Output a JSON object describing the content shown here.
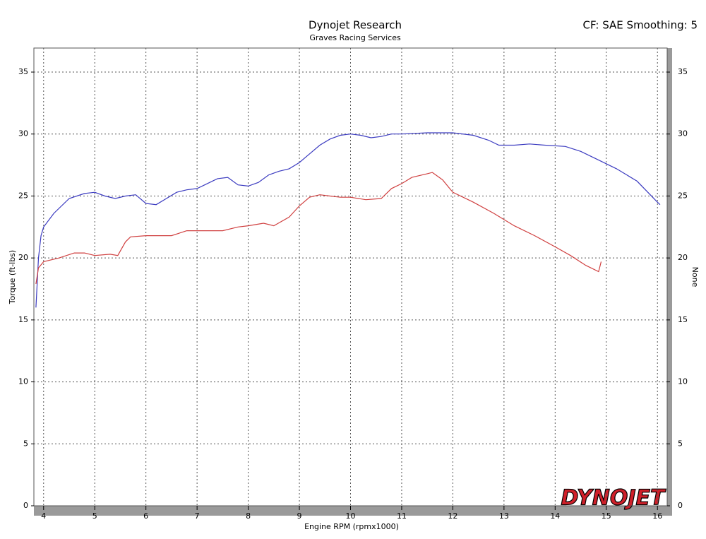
{
  "chart_data": {
    "type": "line",
    "title": "Dynojet Research",
    "subtitle": "Graves Racing Services",
    "annotation": "CF: SAE Smoothing: 5",
    "logo": "DYNOJET",
    "x_label": "Engine RPM (rpmx1000)",
    "y_label": "Torque (ft-lbs)",
    "y2_label": "None",
    "xlim": [
      3.81,
      16.19
    ],
    "xticks": [
      4,
      5,
      6,
      7,
      8,
      9,
      10,
      11,
      12,
      13,
      14,
      15,
      16
    ],
    "ylim": [
      0,
      36.94
    ],
    "yticks": [
      0,
      5,
      10,
      15,
      20,
      25,
      30,
      35
    ],
    "y2lim": [
      0,
      36.94
    ],
    "y2ticks": [
      0,
      5,
      10,
      15,
      20,
      25,
      30,
      35
    ],
    "grid": true,
    "series": [
      {
        "color": "#3b3bc0",
        "x": [
          3.85,
          3.9,
          3.95,
          4.0,
          4.2,
          4.5,
          4.8,
          5.0,
          5.2,
          5.4,
          5.6,
          5.8,
          6.0,
          6.2,
          6.4,
          6.6,
          6.8,
          7.0,
          7.2,
          7.4,
          7.6,
          7.8,
          8.0,
          8.2,
          8.4,
          8.6,
          8.8,
          9.0,
          9.2,
          9.4,
          9.6,
          9.8,
          10.0,
          10.2,
          10.4,
          10.6,
          10.8,
          11.0,
          11.5,
          12.0,
          12.4,
          12.7,
          12.9,
          13.2,
          13.5,
          13.8,
          14.2,
          14.5,
          14.8,
          15.2,
          15.6,
          16.0,
          16.05
        ],
        "values": [
          16.0,
          20.0,
          21.8,
          22.5,
          23.6,
          24.8,
          25.2,
          25.3,
          25.0,
          24.8,
          25.0,
          25.1,
          24.4,
          24.3,
          24.8,
          25.3,
          25.5,
          25.6,
          26.0,
          26.4,
          26.5,
          25.9,
          25.8,
          26.1,
          26.7,
          27.0,
          27.2,
          27.7,
          28.4,
          29.1,
          29.6,
          29.9,
          30.0,
          29.9,
          29.7,
          29.8,
          30.0,
          30.0,
          30.1,
          30.1,
          29.9,
          29.5,
          29.1,
          29.1,
          29.2,
          29.1,
          29.0,
          28.6,
          28.0,
          27.2,
          26.2,
          24.5,
          24.3
        ]
      },
      {
        "color": "#d04040",
        "x": [
          3.85,
          3.9,
          4.0,
          4.3,
          4.6,
          4.8,
          5.0,
          5.3,
          5.45,
          5.6,
          5.7,
          6.0,
          6.5,
          6.8,
          7.0,
          7.5,
          7.8,
          8.0,
          8.3,
          8.5,
          8.8,
          9.0,
          9.2,
          9.4,
          9.6,
          9.8,
          10.0,
          10.3,
          10.6,
          10.8,
          11.0,
          11.2,
          11.5,
          11.6,
          11.8,
          12.0,
          12.4,
          12.8,
          13.2,
          13.6,
          14.0,
          14.3,
          14.6,
          14.85,
          14.9
        ],
        "values": [
          17.9,
          19.2,
          19.7,
          20.0,
          20.4,
          20.4,
          20.2,
          20.3,
          20.2,
          21.3,
          21.7,
          21.8,
          21.8,
          22.2,
          22.2,
          22.2,
          22.5,
          22.6,
          22.8,
          22.6,
          23.3,
          24.2,
          24.9,
          25.1,
          25.0,
          24.9,
          24.9,
          24.7,
          24.8,
          25.6,
          26.0,
          26.5,
          26.8,
          26.9,
          26.3,
          25.3,
          24.5,
          23.6,
          22.6,
          21.8,
          20.9,
          20.2,
          19.4,
          18.9,
          19.7
        ]
      }
    ]
  }
}
